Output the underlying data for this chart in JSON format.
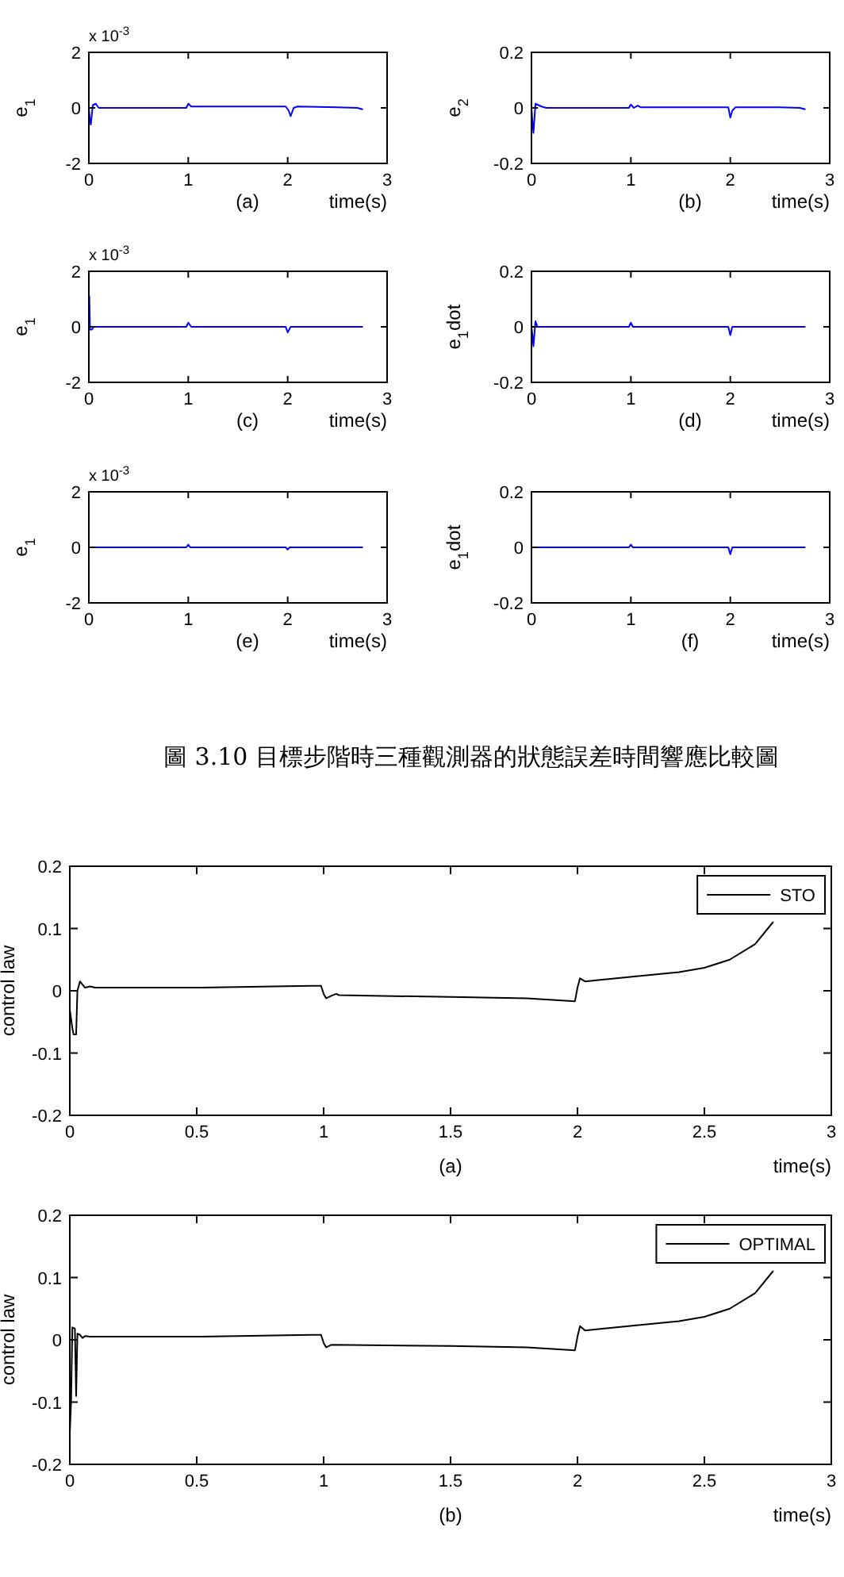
{
  "chart_data": [
    {
      "type": "line",
      "xlabel": "time(s)",
      "ylabel": "e$_{1}$",
      "annotations": [
        "(a)",
        "x 10$^{-3}$"
      ],
      "xlim": [
        0,
        3
      ],
      "ylim": [
        -2,
        2
      ],
      "xticks": [
        0,
        1,
        2,
        3
      ],
      "yticks": [
        -2,
        0,
        2
      ],
      "series": [
        {
          "color": "#0000ff",
          "x": [
            0,
            0.01,
            0.02,
            0.04,
            0.07,
            0.1,
            0.15,
            0.5,
            0.98,
            1.0,
            1.03,
            1.1,
            1.5,
            1.98,
            2.01,
            2.03,
            2.06,
            2.1,
            2.5,
            2.7,
            2.75
          ],
          "values": [
            0,
            -0.4,
            -0.6,
            0.1,
            0.15,
            0,
            0,
            0,
            0,
            0.15,
            0.05,
            0.05,
            0.05,
            0.05,
            -0.1,
            -0.3,
            0,
            0.05,
            0.02,
            0,
            -0.05
          ]
        }
      ]
    },
    {
      "type": "line",
      "xlabel": "time(s)",
      "ylabel": "e$_{2}$",
      "annotations": [
        "(b)"
      ],
      "xlim": [
        0,
        3
      ],
      "ylim": [
        -0.2,
        0.2
      ],
      "xticks": [
        0,
        1,
        2,
        3
      ],
      "yticks": [
        -0.2,
        0,
        0.2
      ],
      "series": [
        {
          "color": "#0000ff",
          "x": [
            0,
            0.01,
            0.02,
            0.04,
            0.07,
            0.1,
            0.15,
            0.5,
            0.98,
            1.0,
            1.03,
            1.07,
            1.1,
            1.5,
            1.98,
            2.0,
            2.02,
            2.05,
            2.5,
            2.7,
            2.75
          ],
          "values": [
            0,
            -0.05,
            -0.09,
            0.015,
            0.01,
            0.005,
            0,
            0,
            0,
            0.012,
            0,
            0.008,
            0.002,
            0.002,
            0.002,
            -0.035,
            -0.01,
            0.002,
            0.002,
            0,
            -0.005
          ]
        }
      ]
    },
    {
      "type": "line",
      "xlabel": "time(s)",
      "ylabel": "e$_{1}$",
      "annotations": [
        "(c)",
        "x 10$^{-3}$"
      ],
      "xlim": [
        0,
        3
      ],
      "ylim": [
        -2,
        2
      ],
      "xticks": [
        0,
        1,
        2,
        3
      ],
      "yticks": [
        -2,
        0,
        2
      ],
      "series": [
        {
          "color": "#0000ff",
          "x": [
            0,
            0.005,
            0.012,
            0.03,
            0.05,
            0.5,
            0.98,
            1.0,
            1.03,
            1.5,
            1.98,
            2.0,
            2.03,
            2.75
          ],
          "values": [
            0,
            1.1,
            -0.1,
            -0.1,
            0,
            0,
            0,
            0.15,
            0,
            0,
            0,
            -0.2,
            0,
            0
          ]
        }
      ]
    },
    {
      "type": "line",
      "xlabel": "time(s)",
      "ylabel": "e$_{1}$dot",
      "annotations": [
        "(d)"
      ],
      "xlim": [
        0,
        3
      ],
      "ylim": [
        -0.2,
        0.2
      ],
      "xticks": [
        0,
        1,
        2,
        3
      ],
      "yticks": [
        -0.2,
        0,
        0.2
      ],
      "series": [
        {
          "color": "#0000ff",
          "x": [
            0,
            0.01,
            0.02,
            0.04,
            0.06,
            0.5,
            0.98,
            1.0,
            1.02,
            1.5,
            1.98,
            2.0,
            2.02,
            2.75
          ],
          "values": [
            0,
            -0.03,
            -0.07,
            0.02,
            0,
            0,
            0,
            0.015,
            0,
            0,
            0,
            -0.03,
            0,
            0
          ]
        }
      ]
    },
    {
      "type": "line",
      "xlabel": "time(s)",
      "ylabel": "e$_{1}$",
      "annotations": [
        "(e)",
        "x 10$^{-3}$"
      ],
      "xlim": [
        0,
        3
      ],
      "ylim": [
        -2,
        2
      ],
      "xticks": [
        0,
        1,
        2,
        3
      ],
      "yticks": [
        -2,
        0,
        2
      ],
      "series": [
        {
          "color": "#0000ff",
          "x": [
            0,
            0.98,
            1.0,
            1.02,
            1.98,
            2.0,
            2.02,
            2.75
          ],
          "values": [
            0,
            0,
            0.1,
            0,
            0,
            -0.08,
            0,
            0
          ]
        }
      ]
    },
    {
      "type": "line",
      "xlabel": "time(s)",
      "ylabel": "e$_{1}$dot",
      "annotations": [
        "(f)",
        "圖 3.10 目標步階時三種觀測器的狀態誤差時間響應比較圖"
      ],
      "xlim": [
        0,
        3
      ],
      "ylim": [
        -0.2,
        0.2
      ],
      "xticks": [
        0,
        1,
        2,
        3
      ],
      "yticks": [
        -0.2,
        0,
        0.2
      ],
      "series": [
        {
          "color": "#0000ff",
          "x": [
            0,
            0.98,
            1.0,
            1.02,
            1.98,
            2.0,
            2.02,
            2.75
          ],
          "values": [
            0,
            0,
            0.01,
            0,
            0,
            -0.025,
            0,
            0
          ]
        }
      ]
    },
    {
      "type": "line",
      "xlabel": "time(s)",
      "ylabel": "control law",
      "annotations": [
        "(a)"
      ],
      "xlim": [
        0,
        3
      ],
      "ylim": [
        -0.2,
        0.2
      ],
      "xticks": [
        0,
        0.5,
        1,
        1.5,
        2,
        2.5,
        3
      ],
      "yticks": [
        -0.2,
        -0.1,
        0,
        0.1,
        0.2
      ],
      "legend": "top right",
      "series": [
        {
          "name": "STO",
          "color": "#000000",
          "x": [
            0,
            0.01,
            0.015,
            0.025,
            0.03,
            0.04,
            0.05,
            0.06,
            0.08,
            0.1,
            0.5,
            0.95,
            0.99,
            1.0,
            1.01,
            1.03,
            1.05,
            1.06,
            1.5,
            1.8,
            1.99,
            2.0,
            2.01,
            2.03,
            2.2,
            2.4,
            2.5,
            2.6,
            2.7,
            2.75,
            2.77
          ],
          "values": [
            -0.03,
            -0.06,
            -0.07,
            -0.07,
            0,
            0.015,
            0.01,
            0.005,
            0.007,
            0.005,
            0.005,
            0.008,
            0.008,
            -0.005,
            -0.012,
            -0.008,
            -0.005,
            -0.007,
            -0.01,
            -0.012,
            -0.017,
            0.005,
            0.02,
            0.015,
            0.022,
            0.03,
            0.037,
            0.05,
            0.075,
            0.1,
            0.11
          ]
        }
      ]
    },
    {
      "type": "line",
      "xlabel": "time(s)",
      "ylabel": "control law",
      "annotations": [
        "(b)"
      ],
      "xlim": [
        0,
        3
      ],
      "ylim": [
        -0.2,
        0.2
      ],
      "xticks": [
        0,
        0.5,
        1,
        1.5,
        2,
        2.5,
        3
      ],
      "yticks": [
        -0.2,
        -0.1,
        0,
        0.1,
        0.2
      ],
      "legend": "top right",
      "series": [
        {
          "name": "OPTIMAL",
          "color": "#000000",
          "x": [
            0,
            0.005,
            0.01,
            0.02,
            0.025,
            0.03,
            0.04,
            0.05,
            0.06,
            0.08,
            0.5,
            0.95,
            0.99,
            1.0,
            1.01,
            1.03,
            1.5,
            1.8,
            1.99,
            2.0,
            2.01,
            2.03,
            2.2,
            2.4,
            2.5,
            2.6,
            2.7,
            2.75,
            2.77
          ],
          "values": [
            -0.15,
            -0.1,
            0.02,
            0.018,
            -0.09,
            0.01,
            0.008,
            0.003,
            0.006,
            0.005,
            0.005,
            0.008,
            0.008,
            -0.005,
            -0.012,
            -0.008,
            -0.01,
            -0.012,
            -0.017,
            0.005,
            0.022,
            0.015,
            0.022,
            0.03,
            0.037,
            0.05,
            0.075,
            0.1,
            0.11
          ]
        }
      ]
    }
  ]
}
